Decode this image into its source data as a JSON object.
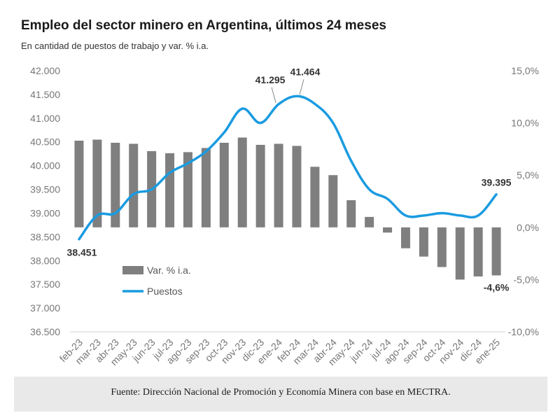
{
  "header": {
    "title": "Empleo del sector minero en Argentina, últimos 24 meses",
    "subtitle": "En cantidad de puestos de trabajo y var. % i.a."
  },
  "footer": {
    "source": "Fuente: Dirección Nacional de Promoción y Economía Minera con base en MECTRA."
  },
  "colors": {
    "bars": "#7f7f7f",
    "line": "#1a9be0",
    "axis_text": "#777777",
    "label_text": "#333333",
    "source_bg": "#e9e9e9"
  },
  "chart_data": {
    "type": "bar",
    "title": "Empleo del sector minero en Argentina, últimos 24 meses",
    "subtitle": "En cantidad de puestos de trabajo y var. % i.a.",
    "categories": [
      "feb-23",
      "mar-23",
      "abr-23",
      "may-23",
      "jun-23",
      "jul-23",
      "ago-23",
      "sep-23",
      "oct-23",
      "nov-23",
      "dic-23",
      "ene-24",
      "feb-24",
      "mar-24",
      "abr-24",
      "may-24",
      "jun-24",
      "jul-24",
      "ago-24",
      "sep-24",
      "oct-24",
      "nov-24",
      "dic-24",
      "ene-25"
    ],
    "series": [
      {
        "name": "Var. % i.a.",
        "type": "bar",
        "axis": "right",
        "values": [
          8.3,
          8.4,
          8.1,
          8.0,
          7.3,
          7.1,
          7.2,
          7.6,
          8.1,
          8.6,
          7.9,
          8.0,
          7.8,
          5.8,
          5.0,
          2.6,
          1.0,
          -0.5,
          -2.0,
          -2.8,
          -3.8,
          -5.0,
          -4.7,
          -4.6
        ]
      },
      {
        "name": "Puestos",
        "type": "line",
        "axis": "left",
        "values": [
          38451,
          38950,
          39000,
          39400,
          39500,
          39850,
          40050,
          40300,
          40700,
          41200,
          40900,
          41295,
          41464,
          41300,
          40900,
          40100,
          39500,
          39300,
          38950,
          38950,
          39000,
          38950,
          38950,
          39395
        ]
      }
    ],
    "y_left": {
      "min": 36500,
      "max": 42000,
      "step": 500,
      "ticks": [
        "36.500",
        "37.000",
        "37.500",
        "38.000",
        "38.500",
        "39.000",
        "39.500",
        "40.000",
        "40.500",
        "41.000",
        "41.500",
        "42.000"
      ]
    },
    "y_right": {
      "min": -10,
      "max": 15,
      "step": 5,
      "ticks": [
        "-10,0%",
        "-5,0%",
        "0,0%",
        "5,0%",
        "10,0%",
        "15,0%"
      ]
    },
    "legend": {
      "placement": "inside-bottom-left",
      "items": [
        "Var. % i.a.",
        "Puestos"
      ]
    },
    "annotations": [
      {
        "series": "Puestos",
        "category": "feb-23",
        "text": "38.451",
        "position": "below"
      },
      {
        "series": "Puestos",
        "category": "ene-24",
        "text": "41.295",
        "position": "above-left"
      },
      {
        "series": "Puestos",
        "category": "feb-24",
        "text": "41.464",
        "position": "above-right"
      },
      {
        "series": "Puestos",
        "category": "ene-25",
        "text": "39.395",
        "position": "above"
      },
      {
        "series": "Var. % i.a.",
        "category": "ene-25",
        "text": "-4,6%",
        "position": "below"
      }
    ],
    "grid": false
  }
}
